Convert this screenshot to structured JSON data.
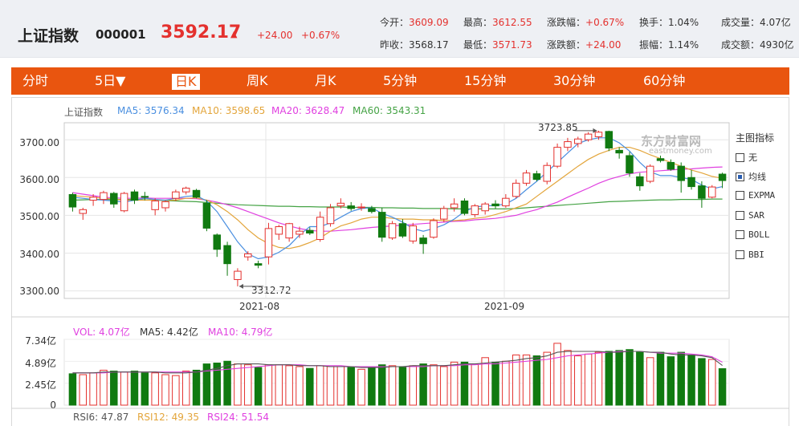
{
  "header": {
    "name": "上证指数",
    "code": "000001",
    "price": "3592.17",
    "arrow": "▲",
    "change": "+24.00",
    "change_pct": "+0.67%",
    "stats": [
      {
        "k": "今开：",
        "v": "3609.09"
      },
      {
        "k": "最高：",
        "v": "3612.55"
      },
      {
        "k": "涨跌幅：",
        "v": "+0.67%"
      },
      {
        "k": "换手：",
        "v": "1.04%"
      },
      {
        "k": "成交量：",
        "v": "4.07亿"
      },
      {
        "k": "昨收：",
        "v": "3568.17"
      },
      {
        "k": "最低：",
        "v": "3571.73"
      },
      {
        "k": "涨跌额：",
        "v": "+24.00"
      },
      {
        "k": "振幅：",
        "v": "1.14%"
      },
      {
        "k": "成交额：",
        "v": "4930亿"
      }
    ]
  },
  "tabs": [
    "分时",
    "5日▼",
    "日K",
    "周K",
    "月K",
    "5分钟",
    "15分钟",
    "30分钟",
    "60分钟"
  ],
  "active_tab": "日K",
  "legend": {
    "name": "上证指数",
    "ma5": "MA5: 3576.34",
    "ma10": "MA10: 3598.65",
    "ma20": "MA20: 3628.47",
    "ma60": "MA60: 3543.31"
  },
  "vol_legend": {
    "vol": "VOL: 4.07亿",
    "ma5": "MA5: 4.42亿",
    "ma10": "MA10: 4.79亿"
  },
  "rsi_legend": {
    "rsi6": "RSI6: 47.87",
    "rsi12": "RSI12: 49.35",
    "rsi24": "RSI24: 51.54"
  },
  "side_menu": {
    "title": "主图指标",
    "items": [
      {
        "label": "无",
        "checked": false
      },
      {
        "label": "均线",
        "checked": true
      },
      {
        "label": "EXPMA",
        "checked": false
      },
      {
        "label": "SAR",
        "checked": false
      },
      {
        "label": "BOLL",
        "checked": false
      },
      {
        "label": "BBI",
        "checked": false
      }
    ]
  },
  "watermark": {
    "cn": "东方财富网",
    "en": "eastmoney.com"
  },
  "annotations": {
    "high": "3723.85",
    "low": "3312.72"
  },
  "colors": {
    "up": "#e4312e",
    "down": "#107a10",
    "ma5": "#4a8fe0",
    "ma10": "#e3a53b",
    "ma20": "#e040e0",
    "ma60": "#45a345",
    "tab_bg": "#e9550f"
  },
  "chart_data": {
    "type": "candlestick",
    "ylim": [
      3280,
      3745
    ],
    "yticks": [
      "3700.00",
      "3600.00",
      "3500.00",
      "3400.00",
      "3300.00"
    ],
    "xticks": [
      "2021-08",
      "2021-09"
    ],
    "candles": [
      {
        "o": 3555,
        "h": 3560,
        "l": 3510,
        "c": 3522
      },
      {
        "o": 3505,
        "h": 3520,
        "l": 3488,
        "c": 3515
      },
      {
        "o": 3540,
        "h": 3556,
        "l": 3525,
        "c": 3548
      },
      {
        "o": 3542,
        "h": 3565,
        "l": 3530,
        "c": 3560
      },
      {
        "o": 3558,
        "h": 3562,
        "l": 3520,
        "c": 3530
      },
      {
        "o": 3512,
        "h": 3562,
        "l": 3508,
        "c": 3558
      },
      {
        "o": 3562,
        "h": 3568,
        "l": 3530,
        "c": 3540
      },
      {
        "o": 3550,
        "h": 3562,
        "l": 3540,
        "c": 3548
      },
      {
        "o": 3515,
        "h": 3545,
        "l": 3500,
        "c": 3538
      },
      {
        "o": 3520,
        "h": 3540,
        "l": 3510,
        "c": 3536
      },
      {
        "o": 3545,
        "h": 3568,
        "l": 3538,
        "c": 3562
      },
      {
        "o": 3562,
        "h": 3576,
        "l": 3555,
        "c": 3572
      },
      {
        "o": 3566,
        "h": 3570,
        "l": 3545,
        "c": 3548
      },
      {
        "o": 3532,
        "h": 3540,
        "l": 3458,
        "c": 3466
      },
      {
        "o": 3448,
        "h": 3452,
        "l": 3390,
        "c": 3410
      },
      {
        "o": 3420,
        "h": 3430,
        "l": 3340,
        "c": 3372
      },
      {
        "o": 3330,
        "h": 3360,
        "l": 3312,
        "c": 3352
      },
      {
        "o": 3390,
        "h": 3405,
        "l": 3380,
        "c": 3398
      },
      {
        "o": 3372,
        "h": 3380,
        "l": 3360,
        "c": 3368
      },
      {
        "o": 3390,
        "h": 3480,
        "l": 3370,
        "c": 3465
      },
      {
        "o": 3450,
        "h": 3475,
        "l": 3435,
        "c": 3470
      },
      {
        "o": 3440,
        "h": 3480,
        "l": 3430,
        "c": 3478
      },
      {
        "o": 3450,
        "h": 3470,
        "l": 3440,
        "c": 3458
      },
      {
        "o": 3460,
        "h": 3468,
        "l": 3448,
        "c": 3453
      },
      {
        "o": 3436,
        "h": 3510,
        "l": 3430,
        "c": 3495
      },
      {
        "o": 3478,
        "h": 3530,
        "l": 3470,
        "c": 3520
      },
      {
        "o": 3525,
        "h": 3545,
        "l": 3518,
        "c": 3532
      },
      {
        "o": 3525,
        "h": 3535,
        "l": 3512,
        "c": 3518
      },
      {
        "o": 3520,
        "h": 3532,
        "l": 3512,
        "c": 3522
      },
      {
        "o": 3518,
        "h": 3525,
        "l": 3505,
        "c": 3510
      },
      {
        "o": 3508,
        "h": 3520,
        "l": 3430,
        "c": 3442
      },
      {
        "o": 3440,
        "h": 3485,
        "l": 3435,
        "c": 3478
      },
      {
        "o": 3478,
        "h": 3490,
        "l": 3440,
        "c": 3445
      },
      {
        "o": 3432,
        "h": 3480,
        "l": 3425,
        "c": 3472
      },
      {
        "o": 3440,
        "h": 3448,
        "l": 3398,
        "c": 3425
      },
      {
        "o": 3442,
        "h": 3492,
        "l": 3438,
        "c": 3486
      },
      {
        "o": 3490,
        "h": 3525,
        "l": 3482,
        "c": 3518
      },
      {
        "o": 3520,
        "h": 3545,
        "l": 3510,
        "c": 3530
      },
      {
        "o": 3538,
        "h": 3545,
        "l": 3500,
        "c": 3505
      },
      {
        "o": 3502,
        "h": 3530,
        "l": 3495,
        "c": 3525
      },
      {
        "o": 3512,
        "h": 3535,
        "l": 3502,
        "c": 3530
      },
      {
        "o": 3530,
        "h": 3540,
        "l": 3518,
        "c": 3525
      },
      {
        "o": 3525,
        "h": 3556,
        "l": 3520,
        "c": 3545
      },
      {
        "o": 3550,
        "h": 3595,
        "l": 3545,
        "c": 3585
      },
      {
        "o": 3585,
        "h": 3620,
        "l": 3578,
        "c": 3612
      },
      {
        "o": 3610,
        "h": 3618,
        "l": 3590,
        "c": 3595
      },
      {
        "o": 3590,
        "h": 3640,
        "l": 3582,
        "c": 3632
      },
      {
        "o": 3630,
        "h": 3690,
        "l": 3625,
        "c": 3680
      },
      {
        "o": 3680,
        "h": 3705,
        "l": 3670,
        "c": 3695
      },
      {
        "o": 3690,
        "h": 3708,
        "l": 3680,
        "c": 3702
      },
      {
        "o": 3700,
        "h": 3720,
        "l": 3695,
        "c": 3715
      },
      {
        "o": 3708,
        "h": 3724,
        "l": 3700,
        "c": 3720
      },
      {
        "o": 3722,
        "h": 3724,
        "l": 3670,
        "c": 3678
      },
      {
        "o": 3672,
        "h": 3680,
        "l": 3650,
        "c": 3665
      },
      {
        "o": 3658,
        "h": 3668,
        "l": 3602,
        "c": 3612
      },
      {
        "o": 3602,
        "h": 3612,
        "l": 3565,
        "c": 3578
      },
      {
        "o": 3590,
        "h": 3635,
        "l": 3585,
        "c": 3630
      },
      {
        "o": 3650,
        "h": 3658,
        "l": 3640,
        "c": 3645
      },
      {
        "o": 3640,
        "h": 3648,
        "l": 3618,
        "c": 3622
      },
      {
        "o": 3630,
        "h": 3640,
        "l": 3560,
        "c": 3592
      },
      {
        "o": 3600,
        "h": 3620,
        "l": 3568,
        "c": 3576
      },
      {
        "o": 3578,
        "h": 3590,
        "l": 3520,
        "c": 3545
      },
      {
        "o": 3548,
        "h": 3580,
        "l": 3545,
        "c": 3575
      },
      {
        "o": 3609,
        "h": 3613,
        "l": 3572,
        "c": 3592
      }
    ],
    "ma5": [
      3548,
      3545,
      3542,
      3540,
      3538,
      3535,
      3540,
      3545,
      3542,
      3540,
      3545,
      3550,
      3552,
      3538,
      3510,
      3470,
      3430,
      3398,
      3385,
      3390,
      3402,
      3420,
      3448,
      3470,
      3470,
      3480,
      3495,
      3510,
      3518,
      3520,
      3505,
      3495,
      3482,
      3465,
      3458,
      3465,
      3475,
      3490,
      3510,
      3522,
      3525,
      3526,
      3530,
      3545,
      3568,
      3590,
      3615,
      3640,
      3665,
      3690,
      3700,
      3705,
      3705,
      3692,
      3670,
      3640,
      3615,
      3605,
      3605,
      3600,
      3595,
      3580,
      3570,
      3576
    ],
    "ma10": [
      3552,
      3550,
      3548,
      3545,
      3543,
      3540,
      3540,
      3540,
      3540,
      3540,
      3540,
      3545,
      3546,
      3540,
      3528,
      3510,
      3488,
      3462,
      3440,
      3425,
      3415,
      3412,
      3418,
      3428,
      3440,
      3458,
      3472,
      3480,
      3490,
      3495,
      3495,
      3492,
      3490,
      3490,
      3488,
      3488,
      3486,
      3486,
      3488,
      3492,
      3495,
      3502,
      3510,
      3520,
      3530,
      3550,
      3570,
      3590,
      3610,
      3630,
      3648,
      3662,
      3672,
      3680,
      3680,
      3672,
      3660,
      3650,
      3640,
      3630,
      3620,
      3612,
      3603,
      3598
    ],
    "ma20": [
      3560,
      3556,
      3552,
      3548,
      3546,
      3545,
      3545,
      3546,
      3545,
      3545,
      3545,
      3545,
      3544,
      3540,
      3535,
      3528,
      3520,
      3510,
      3500,
      3490,
      3480,
      3472,
      3465,
      3460,
      3458,
      3458,
      3460,
      3462,
      3465,
      3468,
      3470,
      3472,
      3474,
      3476,
      3478,
      3480,
      3482,
      3484,
      3485,
      3488,
      3490,
      3492,
      3496,
      3500,
      3508,
      3515,
      3525,
      3535,
      3548,
      3560,
      3572,
      3585,
      3595,
      3603,
      3610,
      3614,
      3616,
      3618,
      3620,
      3622,
      3623,
      3625,
      3627,
      3628
    ],
    "ma60": [
      3540,
      3541,
      3542,
      3542,
      3542,
      3542,
      3542,
      3541,
      3540,
      3539,
      3538,
      3537,
      3536,
      3534,
      3532,
      3530,
      3528,
      3527,
      3526,
      3525,
      3524,
      3524,
      3523,
      3523,
      3522,
      3522,
      3522,
      3521,
      3521,
      3521,
      3520,
      3520,
      3519,
      3519,
      3518,
      3518,
      3518,
      3517,
      3517,
      3517,
      3517,
      3517,
      3517,
      3518,
      3520,
      3522,
      3524,
      3526,
      3528,
      3530,
      3532,
      3534,
      3536,
      3537,
      3538,
      3539,
      3540,
      3541,
      3541,
      3542,
      3542,
      3542,
      3543,
      3543
    ],
    "volume_ylim": [
      0,
      7.34
    ],
    "volume_yticks": [
      "7.34亿",
      "4.89亿",
      "2.45亿",
      "0"
    ],
    "volume": [
      3.5,
      3.4,
      3.6,
      3.9,
      3.8,
      3.7,
      3.8,
      3.6,
      3.6,
      3.4,
      3.3,
      3.8,
      3.9,
      4.6,
      4.7,
      4.9,
      4.6,
      4.5,
      4.2,
      4.5,
      4.5,
      4.4,
      4.3,
      4.1,
      4.4,
      4.3,
      4.3,
      4.2,
      4.0,
      4.2,
      4.5,
      4.4,
      4.3,
      4.4,
      4.6,
      4.5,
      4.3,
      4.8,
      4.8,
      4.6,
      5.3,
      4.8,
      4.9,
      5.6,
      5.6,
      5.5,
      5.9,
      6.9,
      6.1,
      5.5,
      5.7,
      5.9,
      6.0,
      6.1,
      6.2,
      5.9,
      5.3,
      5.9,
      5.4,
      5.9,
      5.6,
      5.2,
      5.1,
      4.07
    ],
    "vol_ma5": [
      3.6,
      3.6,
      3.6,
      3.7,
      3.7,
      3.7,
      3.7,
      3.7,
      3.7,
      3.6,
      3.6,
      3.6,
      3.7,
      3.9,
      4.1,
      4.4,
      4.6,
      4.6,
      4.6,
      4.5,
      4.5,
      4.5,
      4.4,
      4.4,
      4.4,
      4.3,
      4.3,
      4.3,
      4.2,
      4.2,
      4.2,
      4.3,
      4.3,
      4.4,
      4.4,
      4.4,
      4.4,
      4.5,
      4.6,
      4.6,
      4.7,
      4.8,
      4.9,
      5.0,
      5.2,
      5.3,
      5.5,
      5.9,
      6.0,
      6.0,
      6.0,
      6.0,
      5.9,
      5.9,
      6.0,
      6.0,
      5.9,
      5.9,
      5.7,
      5.6,
      5.6,
      5.5,
      5.3,
      4.42
    ],
    "vol_ma10": [
      3.6,
      3.6,
      3.6,
      3.6,
      3.7,
      3.7,
      3.7,
      3.7,
      3.7,
      3.7,
      3.7,
      3.7,
      3.7,
      3.8,
      3.9,
      4.0,
      4.1,
      4.2,
      4.3,
      4.4,
      4.5,
      4.5,
      4.5,
      4.4,
      4.4,
      4.4,
      4.4,
      4.3,
      4.3,
      4.3,
      4.3,
      4.3,
      4.3,
      4.3,
      4.3,
      4.4,
      4.4,
      4.4,
      4.5,
      4.5,
      4.6,
      4.6,
      4.7,
      4.8,
      4.9,
      5.0,
      5.1,
      5.3,
      5.5,
      5.6,
      5.7,
      5.8,
      5.9,
      6.0,
      6.0,
      6.0,
      5.9,
      5.8,
      5.8,
      5.8,
      5.7,
      5.6,
      5.4,
      4.79
    ]
  }
}
